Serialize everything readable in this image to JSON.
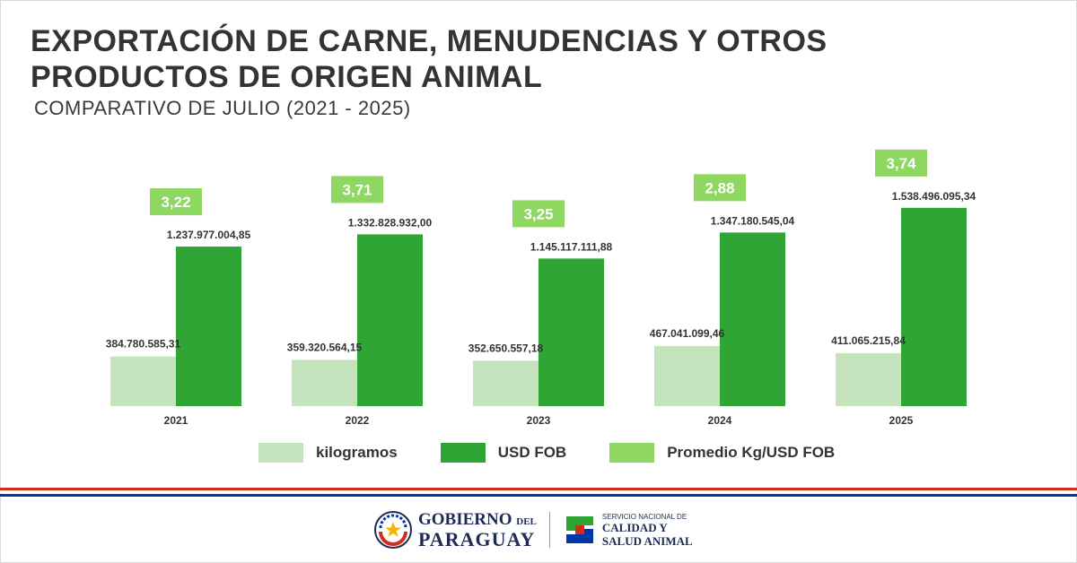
{
  "header": {
    "title_line1": "EXPORTACIÓN DE CARNE, MENUDENCIAS Y OTROS",
    "title_line2": "PRODUCTOS DE ORIGEN ANIMAL",
    "subtitle": "COMPARATIVO DE JULIO (2021 - 2025)"
  },
  "chart_data": {
    "type": "bar",
    "categories": [
      "2021",
      "2022",
      "2023",
      "2024",
      "2025"
    ],
    "series": [
      {
        "name": "kilogramos",
        "values": [
          384780585.31,
          359320564.15,
          352650557.18,
          467041099.46,
          411065215.84
        ],
        "labels": [
          "384.780.585,31",
          "359.320.564,15",
          "352.650.557,18",
          "467.041.099,46",
          "411.065.215,84"
        ]
      },
      {
        "name": "USD FOB",
        "values": [
          1237977004.85,
          1332828932.0,
          1145117111.88,
          1347180545.04,
          1538496095.34
        ],
        "labels": [
          "1.237.977.004,85",
          "1.332.828.932,00",
          "1.145.117.111,88",
          "1.347.180.545,04",
          "1.538.496.095,34"
        ]
      },
      {
        "name": "Promedio Kg/USD FOB",
        "values": [
          3.22,
          3.71,
          3.25,
          2.88,
          3.74
        ],
        "labels": [
          "3,22",
          "3,71",
          "3,25",
          "2,88",
          "3,74"
        ]
      }
    ],
    "colors": {
      "kilogramos": "#c5e3bd",
      "usd_fob": "#2ea535",
      "promedio": "#8ed760"
    },
    "ylim": [
      0,
      1600000000
    ],
    "grid": false,
    "legend": "bottom"
  },
  "legend": {
    "items": [
      {
        "label": "kilogramos",
        "color": "#c5e3bd"
      },
      {
        "label": "USD FOB",
        "color": "#2ea535"
      },
      {
        "label": "Promedio Kg/USD FOB",
        "color": "#8ed760"
      }
    ]
  },
  "footer": {
    "gov_line1": "GOBIERNO",
    "gov_del": "DEL",
    "gov_line2": "PARAGUAY",
    "senacsa_line1": "SERVICIO NACIONAL DE",
    "senacsa_line2": "CALIDAD Y",
    "senacsa_line3": "SALUD ANIMAL",
    "stripe_red": "#d52b1e",
    "stripe_blue": "#0038a8"
  }
}
